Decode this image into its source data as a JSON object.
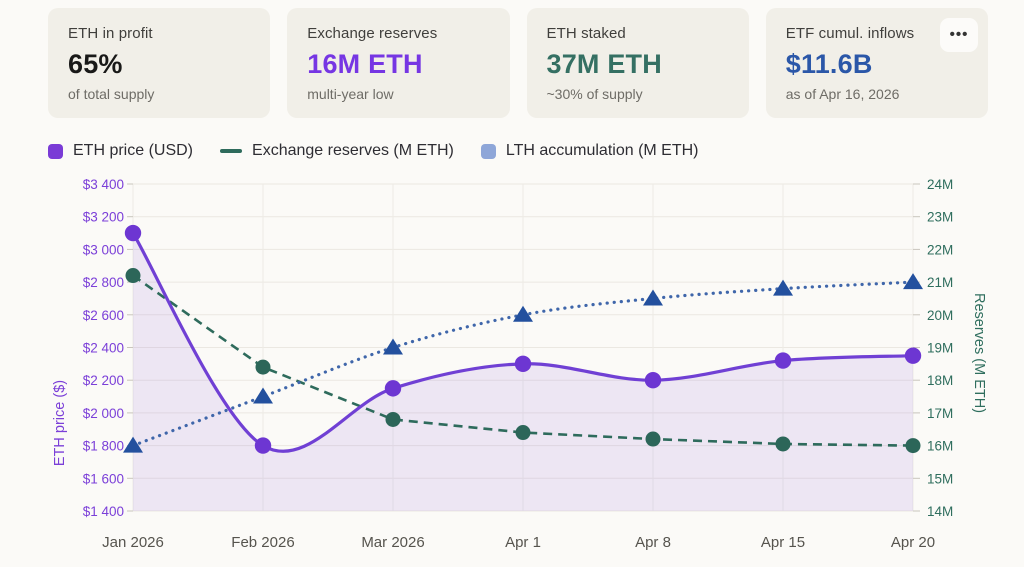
{
  "cards": [
    {
      "title": "ETH in profit",
      "value": "65%",
      "sub": "of total supply",
      "value_color": "#191918"
    },
    {
      "title": "Exchange reserves",
      "value": "16M ETH",
      "sub": "multi-year low",
      "value_color": "#7636e3"
    },
    {
      "title": "ETH staked",
      "value": "37M ETH",
      "sub": "~30% of supply",
      "value_color": "#357063"
    },
    {
      "title": "ETF cumul. inflows",
      "value": "$11.6B",
      "sub": "as of Apr 16, 2026",
      "value_color": "#2b57a8"
    }
  ],
  "menu_button": {
    "icon": "•••"
  },
  "legend": [
    {
      "label": "ETH price (USD)",
      "marker": "square",
      "color": "#7a3bd6"
    },
    {
      "label": "Exchange reserves (M ETH)",
      "marker": "dash",
      "color": "#2e6b5c"
    },
    {
      "label": "LTH accumulation (M ETH)",
      "marker": "square",
      "color": "#8ea6d8"
    }
  ],
  "chart_data": {
    "type": "line",
    "x": [
      "Jan 2026",
      "Feb 2026",
      "Mar 2026",
      "Apr 1",
      "Apr 8",
      "Apr 15",
      "Apr 20"
    ],
    "series": [
      {
        "name": "ETH price (USD)",
        "axis": "left",
        "type": "smooth-area",
        "values": [
          3100,
          1800,
          2150,
          2300,
          2200,
          2320,
          2350
        ],
        "color": "#7040d4",
        "marker": "circle",
        "marker_color": "#6d36d2",
        "area_fill": "rgba(113,61,212,0.10)"
      },
      {
        "name": "Exchange reserves (M ETH)",
        "axis": "right",
        "type": "dashed",
        "values": [
          21.2,
          18.4,
          16.8,
          16.4,
          16.2,
          16.05,
          16.0
        ],
        "color": "#2e6b5c",
        "marker": "circle",
        "marker_color": "#2c6659"
      },
      {
        "name": "LTH accumulation (M ETH)",
        "axis": "right",
        "type": "dotted",
        "values": [
          16,
          17.5,
          19,
          20,
          20.5,
          20.8,
          21
        ],
        "color": "#3f66aa",
        "marker": "triangle",
        "marker_color": "#23509e"
      }
    ],
    "left_axis": {
      "label": "ETH price ($)",
      "min": 1400,
      "max": 3400,
      "tick_step": 200,
      "color": "#7b3fd8",
      "ticks": [
        "$3 400",
        "$3 200",
        "$3 000",
        "$2 800",
        "$2 600",
        "$2 400",
        "$2 200",
        "$2 000",
        "$1 800",
        "$1 600",
        "$1 400"
      ]
    },
    "right_axis": {
      "label": "Reserves (M ETH)",
      "min": 14,
      "max": 24,
      "tick_step": 1,
      "color": "#2f6e5e",
      "ticks": [
        "24M",
        "23M",
        "22M",
        "21M",
        "20M",
        "19M",
        "18M",
        "17M",
        "16M",
        "15M",
        "14M"
      ]
    },
    "x_axis_color": "#56544e",
    "grid": true,
    "legend_position": "top"
  }
}
